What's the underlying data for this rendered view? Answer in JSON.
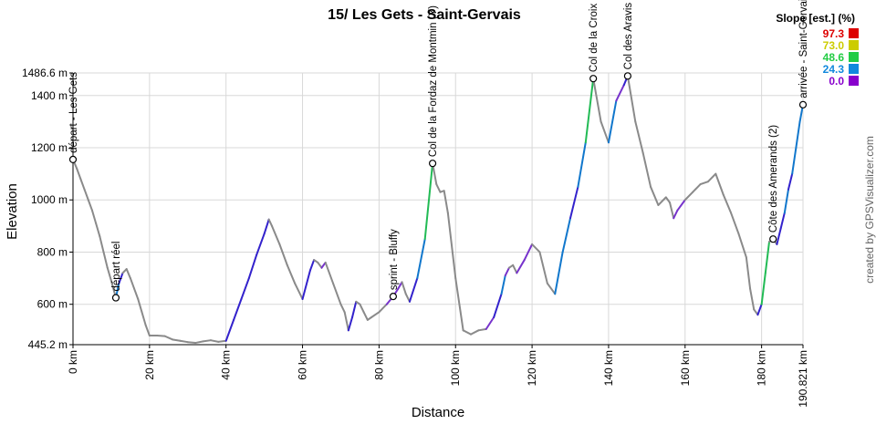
{
  "chart_data": {
    "type": "line",
    "title": "15/ Les Gets - Saint-Gervais",
    "xlabel": "Distance",
    "ylabel": "Elevation",
    "xlim": [
      0,
      190.821
    ],
    "ylim": [
      445.2,
      1486.6
    ],
    "x_ticks": [
      0,
      20,
      40,
      60,
      80,
      100,
      120,
      140,
      160,
      180,
      190.821
    ],
    "x_tick_labels": [
      "0 km",
      "20 km",
      "40 km",
      "60 km",
      "80 km",
      "100 km",
      "120 km",
      "140 km",
      "160 km",
      "180 km",
      "190.821 km"
    ],
    "y_ticks": [
      445.2,
      600,
      800,
      1000,
      1200,
      1400,
      1486.6
    ],
    "y_tick_labels": [
      "445.2 m",
      "600 m",
      "800 m",
      "1000 m",
      "1200 m",
      "1400 m",
      "1486.6 m"
    ],
    "grid": true,
    "credit": "created by GPSVisualizer.com",
    "legend": {
      "title": "Slope [est.] (%)",
      "placement": "top-right",
      "items": [
        {
          "label": "97.3",
          "color": "#dd0000"
        },
        {
          "label": "73.0",
          "color": "#cccc00"
        },
        {
          "label": "48.6",
          "color": "#22cc44"
        },
        {
          "label": "24.3",
          "color": "#1188dd"
        },
        {
          "label": "0.0",
          "color": "#8800cc"
        }
      ]
    },
    "series": [
      {
        "x": [
          0,
          1,
          2,
          3,
          4,
          5,
          6,
          7,
          8,
          9,
          10,
          11.2,
          12,
          13,
          14,
          15,
          16,
          17,
          18,
          19,
          20,
          22,
          24,
          26,
          28,
          30,
          32,
          34,
          36,
          38,
          40,
          42,
          44,
          46,
          48,
          50,
          51.2,
          52,
          54,
          56,
          58,
          60,
          62,
          63,
          64,
          65,
          66,
          68,
          70,
          71,
          72,
          73,
          74,
          75,
          76,
          77,
          78,
          80,
          82,
          83.7,
          85,
          86,
          87,
          88,
          90,
          92,
          94,
          95,
          96,
          97,
          98,
          100,
          102,
          104,
          106,
          108,
          110,
          112,
          113,
          114,
          115,
          116,
          118,
          120,
          122,
          124,
          126,
          128,
          130,
          132,
          134,
          136,
          138,
          140,
          142,
          144,
          145,
          147,
          149,
          151,
          153,
          155,
          156,
          157,
          158,
          160,
          162,
          164,
          166,
          168,
          170,
          172,
          174,
          176,
          177,
          178,
          179,
          180,
          181,
          182,
          183,
          184,
          185,
          186,
          187,
          188,
          189,
          190,
          190.821
        ],
        "y": [
          1155,
          1120,
          1080,
          1040,
          1000,
          960,
          910,
          860,
          800,
          740,
          690,
          625,
          680,
          720,
          735,
          700,
          660,
          620,
          570,
          520,
          480,
          480,
          478,
          465,
          460,
          455,
          452,
          458,
          462,
          456,
          460,
          540,
          620,
          700,
          790,
          870,
          925,
          900,
          830,
          750,
          680,
          620,
          730,
          770,
          760,
          740,
          760,
          680,
          600,
          570,
          500,
          550,
          610,
          600,
          570,
          540,
          550,
          570,
          600,
          630,
          660,
          685,
          640,
          610,
          700,
          850,
          1140,
          1060,
          1030,
          1035,
          950,
          700,
          500,
          485,
          500,
          505,
          550,
          640,
          710,
          740,
          750,
          720,
          770,
          830,
          800,
          680,
          640,
          800,
          930,
          1050,
          1220,
          1465,
          1300,
          1220,
          1380,
          1440,
          1475,
          1300,
          1180,
          1050,
          980,
          1010,
          990,
          930,
          960,
          1000,
          1030,
          1060,
          1070,
          1100,
          1020,
          950,
          870,
          780,
          660,
          580,
          560,
          600,
          720,
          840,
          850,
          830,
          890,
          950,
          1040,
          1100,
          1200,
          1300,
          1365
        ]
      }
    ],
    "waypoints": [
      {
        "x": 0,
        "y": 1155,
        "label": "départ - Les Gets"
      },
      {
        "x": 11.2,
        "y": 625,
        "label": "départ réel"
      },
      {
        "x": 83.7,
        "y": 630,
        "label": "sprint - Bluffy"
      },
      {
        "x": 94,
        "y": 1140,
        "label": "Col de la Fordaz de Montmin (Y)"
      },
      {
        "x": 136,
        "y": 1465,
        "label": "Col de la Croix Fry"
      },
      {
        "x": 145,
        "y": 1475,
        "label": "Col des Aravis"
      },
      {
        "x": 183,
        "y": 850,
        "label": "Côte des Amerands (2)"
      },
      {
        "x": 190.821,
        "y": 1365,
        "label": "arrivée - Saint-Gervais"
      }
    ]
  }
}
